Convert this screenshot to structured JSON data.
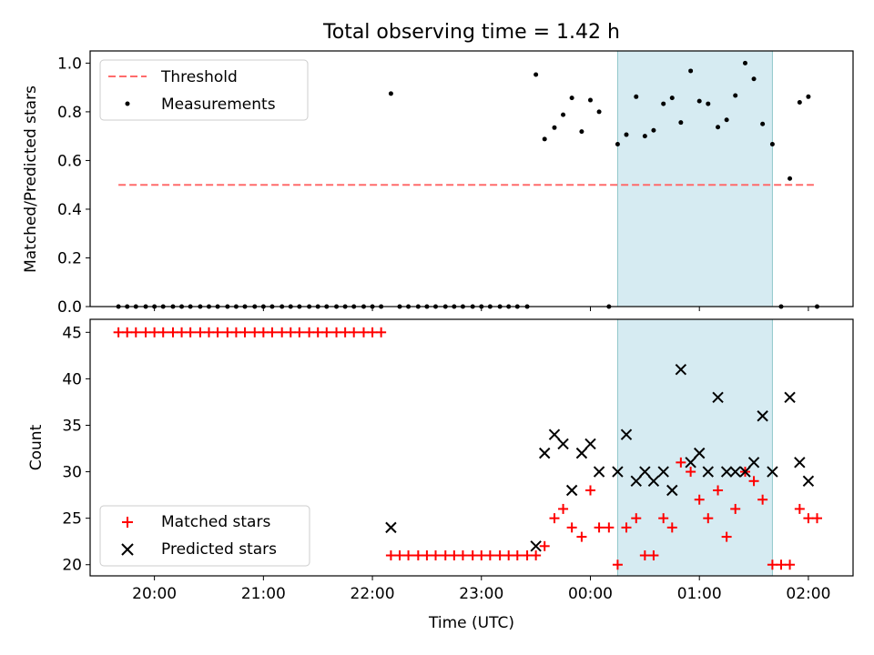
{
  "figure_title": "Total observing time = 1.42 h",
  "x_tick_labels": [
    "20:00",
    "21:00",
    "22:00",
    "23:00",
    "00:00",
    "01:00",
    "02:00"
  ],
  "colors": {
    "threshold": "#ff6b6b",
    "matched": "#ff0000",
    "predicted": "#000000",
    "shade": "#add8e6"
  },
  "chart_data": [
    {
      "type": "scatter",
      "ylabel": "Matched/Predicted stars",
      "xlim": [
        19.41,
        26.41
      ],
      "ylim": [
        0,
        1.05
      ],
      "y_ticks": [
        "0.0",
        "0.2",
        "0.4",
        "0.6",
        "0.8",
        "1.0"
      ],
      "shaded_interval": [
        24.25,
        25.67
      ],
      "legend": {
        "position": "upper-left",
        "threshold_label": "Threshold",
        "measurements_label": "Measurements"
      },
      "threshold": {
        "name": "Threshold",
        "value": 0.5,
        "x_range": [
          19.67,
          26.05
        ]
      },
      "measurements": {
        "name": "Measurements",
        "x": [
          19.67,
          19.75,
          19.83,
          19.92,
          20.0,
          20.08,
          20.17,
          20.25,
          20.33,
          20.42,
          20.5,
          20.58,
          20.67,
          20.75,
          20.83,
          20.92,
          21.0,
          21.08,
          21.17,
          21.25,
          21.33,
          21.42,
          21.5,
          21.58,
          21.67,
          21.75,
          21.83,
          21.92,
          22.0,
          22.08,
          22.17,
          22.25,
          22.33,
          22.42,
          22.5,
          22.58,
          22.67,
          22.75,
          22.83,
          22.92,
          23.0,
          23.08,
          23.17,
          23.25,
          23.33,
          23.42,
          23.5,
          23.58,
          23.67,
          23.75,
          23.83,
          23.92,
          24.0,
          24.08,
          24.17,
          24.25,
          24.33,
          24.42,
          24.5,
          24.58,
          24.67,
          24.75,
          24.83,
          24.92,
          25.0,
          25.08,
          25.17,
          25.25,
          25.33,
          25.42,
          25.5,
          25.58,
          25.67,
          25.75,
          25.83,
          25.92,
          26.0,
          26.08
        ],
        "y": [
          0,
          0,
          0,
          0,
          0,
          0,
          0,
          0,
          0,
          0,
          0,
          0,
          0,
          0,
          0,
          0,
          0,
          0,
          0,
          0,
          0,
          0,
          0,
          0,
          0,
          0,
          0,
          0,
          0,
          0,
          0.875,
          0,
          0,
          0,
          0,
          0,
          0,
          0,
          0,
          0,
          0,
          0,
          0,
          0,
          0,
          0,
          0.953,
          0.688,
          0.735,
          0.788,
          0.857,
          0.719,
          0.848,
          0.8,
          0,
          0.667,
          0.706,
          0.862,
          0.7,
          0.724,
          0.833,
          0.857,
          0.756,
          0.968,
          0.844,
          0.833,
          0.737,
          0.767,
          0.867,
          1.0,
          0.935,
          0.75,
          0.667,
          0,
          0.526,
          0.839,
          0.862,
          0
        ]
      }
    },
    {
      "type": "scatter",
      "xlabel": "Time (UTC)",
      "ylabel": "Count",
      "xlim": [
        19.41,
        26.41
      ],
      "ylim": [
        18.8,
        46.4
      ],
      "y_ticks": [
        "20",
        "25",
        "30",
        "35",
        "40",
        "45"
      ],
      "shaded_interval": [
        24.25,
        25.67
      ],
      "legend": {
        "position": "lower-left",
        "matched_label": "Matched stars",
        "predicted_label": "Predicted stars"
      },
      "series": [
        {
          "name": "Matched stars",
          "x": [
            19.67,
            19.75,
            19.83,
            19.92,
            20.0,
            20.08,
            20.17,
            20.25,
            20.33,
            20.42,
            20.5,
            20.58,
            20.67,
            20.75,
            20.83,
            20.92,
            21.0,
            21.08,
            21.17,
            21.25,
            21.33,
            21.42,
            21.5,
            21.58,
            21.67,
            21.75,
            21.83,
            21.92,
            22.0,
            22.08,
            22.17,
            22.25,
            22.33,
            22.42,
            22.5,
            22.58,
            22.67,
            22.75,
            22.83,
            22.92,
            23.0,
            23.08,
            23.17,
            23.25,
            23.33,
            23.42,
            23.5,
            23.58,
            23.67,
            23.75,
            23.83,
            23.92,
            24.0,
            24.08,
            24.17,
            24.25,
            24.33,
            24.42,
            24.5,
            24.58,
            24.67,
            24.75,
            24.83,
            24.92,
            25.0,
            25.08,
            25.17,
            25.25,
            25.33,
            25.42,
            25.5,
            25.58,
            25.67,
            25.75,
            25.83,
            25.92,
            26.0,
            26.08
          ],
          "y": [
            45,
            45,
            45,
            45,
            45,
            45,
            45,
            45,
            45,
            45,
            45,
            45,
            45,
            45,
            45,
            45,
            45,
            45,
            45,
            45,
            45,
            45,
            45,
            45,
            45,
            45,
            45,
            45,
            45,
            45,
            21,
            21,
            21,
            21,
            21,
            21,
            21,
            21,
            21,
            21,
            21,
            21,
            21,
            21,
            21,
            21,
            21,
            22,
            25,
            26,
            24,
            23,
            28,
            24,
            24,
            20,
            24,
            25,
            21,
            21,
            25,
            24,
            31,
            30,
            27,
            25,
            28,
            23,
            26,
            30,
            29,
            27,
            20,
            20,
            20,
            26,
            25,
            25
          ]
        },
        {
          "name": "Predicted stars",
          "x": [
            22.17,
            23.5,
            23.58,
            23.67,
            23.75,
            23.83,
            23.92,
            24.0,
            24.08,
            24.25,
            24.33,
            24.42,
            24.5,
            24.58,
            24.67,
            24.75,
            24.83,
            24.92,
            25.0,
            25.08,
            25.17,
            25.25,
            25.33,
            25.42,
            25.5,
            25.58,
            25.67,
            25.83,
            25.92,
            26.0
          ],
          "y": [
            24,
            22,
            32,
            34,
            33,
            28,
            32,
            33,
            30,
            30,
            34,
            29,
            30,
            29,
            30,
            28,
            41,
            31,
            32,
            30,
            38,
            30,
            30,
            30,
            31,
            36,
            30,
            38,
            31,
            29
          ]
        }
      ]
    }
  ]
}
